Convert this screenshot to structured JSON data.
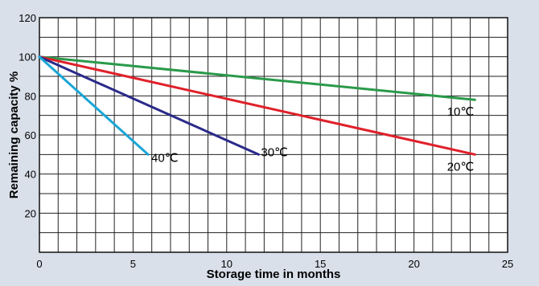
{
  "chart_data": {
    "type": "line",
    "xlabel": "Storage time in  months",
    "ylabel": "Remaining capacity %",
    "xlim": [
      0,
      25
    ],
    "ylim": [
      0,
      120
    ],
    "x_ticks": [
      0,
      5,
      10,
      15,
      20,
      25
    ],
    "y_ticks": [
      20,
      40,
      60,
      80,
      100,
      120
    ],
    "grid": true,
    "series": [
      {
        "name": "10℃",
        "color": "#2a9a4a",
        "x": [
          0,
          23.25
        ],
        "y": [
          100,
          78
        ]
      },
      {
        "name": "20℃",
        "color": "#e0202a",
        "x": [
          0,
          23.25
        ],
        "y": [
          100,
          50
        ]
      },
      {
        "name": "30℃",
        "color": "#2a2a8a",
        "x": [
          0,
          11.7
        ],
        "y": [
          100,
          50
        ]
      },
      {
        "name": "40℃",
        "color": "#1aa6d6",
        "x": [
          0,
          5.8
        ],
        "y": [
          100,
          50
        ]
      }
    ]
  }
}
